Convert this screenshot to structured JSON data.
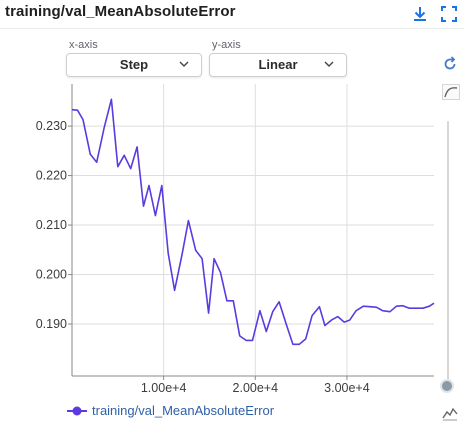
{
  "panel": {
    "title": "training/val_MeanAbsoluteError"
  },
  "toolbar": {
    "download_icon": "download-icon",
    "fullscreen_icon": "fullscreen-icon"
  },
  "controls": {
    "x_axis_caption": "x-axis",
    "x_axis_value": "Step",
    "y_axis_caption": "y-axis",
    "y_axis_value": "Linear"
  },
  "side_tools": {
    "reset_icon": "reset-zoom-icon",
    "smoothing_icon": "smoothing-curve-icon",
    "sparkline_icon": "sparkline-icon"
  },
  "colors": {
    "series": "#5b3ae0",
    "accent": "#1a73e8",
    "grid": "#dedede",
    "legend_text": "#2f5fa8"
  },
  "chart_data": {
    "type": "line",
    "title": "",
    "xlabel": "",
    "ylabel": "",
    "xlim": [
      0,
      39500
    ],
    "ylim": [
      0.1795,
      0.2385
    ],
    "x_ticks": [
      10000,
      20000,
      30000
    ],
    "x_tick_labels": [
      "1.00e+4",
      "2.00e+4",
      "3.00e+4"
    ],
    "y_ticks": [
      0.19,
      0.2,
      0.21,
      0.22,
      0.23
    ],
    "y_tick_labels": [
      "0.190",
      "0.200",
      "0.210",
      "0.220",
      "0.230"
    ],
    "grid": true,
    "legend_position": "bottom-left",
    "series": [
      {
        "name": "training/val_MeanAbsoluteError",
        "x": [
          0,
          600,
          1200,
          2000,
          2700,
          3500,
          4300,
          5000,
          5700,
          6400,
          7100,
          7800,
          8400,
          9100,
          9800,
          10500,
          11200,
          12000,
          12700,
          13500,
          14200,
          14900,
          15500,
          16200,
          16900,
          17600,
          18300,
          19000,
          19700,
          20500,
          21200,
          21900,
          22600,
          23400,
          24100,
          24800,
          25500,
          26200,
          27000,
          27600,
          28300,
          29000,
          29700,
          30300,
          31000,
          31800,
          32500,
          33200,
          33900,
          34700,
          35400,
          36100,
          36800,
          37600,
          38300,
          39000,
          39500
        ],
        "values": [
          0.2333,
          0.2332,
          0.2313,
          0.2243,
          0.2227,
          0.2296,
          0.2354,
          0.2218,
          0.2241,
          0.2214,
          0.2258,
          0.2138,
          0.218,
          0.2119,
          0.218,
          0.2043,
          0.1968,
          0.204,
          0.2109,
          0.2049,
          0.2032,
          0.1922,
          0.2032,
          0.2004,
          0.1947,
          0.1947,
          0.1876,
          0.1867,
          0.1867,
          0.1927,
          0.1885,
          0.1925,
          0.1945,
          0.1898,
          0.1859,
          0.1859,
          0.187,
          0.1917,
          0.1935,
          0.1897,
          0.1908,
          0.1915,
          0.1904,
          0.1908,
          0.1927,
          0.1936,
          0.1935,
          0.1934,
          0.1927,
          0.1925,
          0.1936,
          0.1937,
          0.1932,
          0.1932,
          0.1932,
          0.1936,
          0.1942
        ]
      }
    ]
  }
}
